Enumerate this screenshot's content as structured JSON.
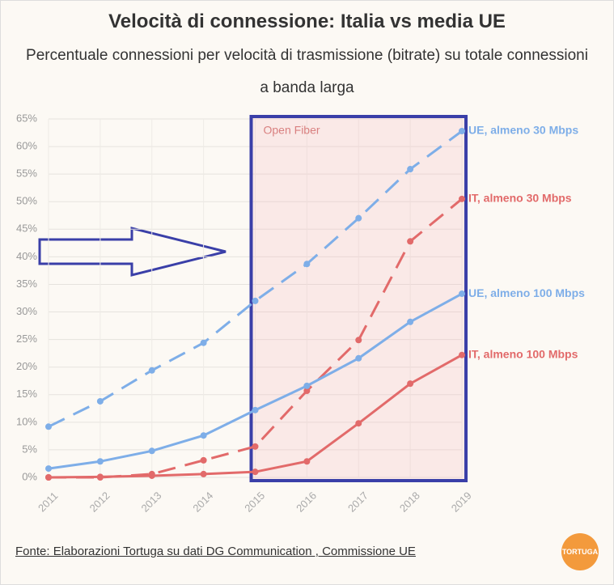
{
  "chart_data": {
    "type": "line",
    "title": "Velocità di connessione: Italia vs media UE",
    "subtitle": "Percentuale connessioni per velocità di trasmissione (bitrate) su totale connessioni a banda larga",
    "x": [
      2011,
      2012,
      2013,
      2014,
      2015,
      2016,
      2017,
      2018,
      2019
    ],
    "xlim": [
      2011,
      2019
    ],
    "ylim": [
      0,
      65
    ],
    "yticks": [
      {
        "value": 0,
        "label": "0%"
      },
      {
        "value": 5,
        "label": "5%"
      },
      {
        "value": 10,
        "label": "10%"
      },
      {
        "value": 15,
        "label": "15%"
      },
      {
        "value": 20,
        "label": "20%"
      },
      {
        "value": 25,
        "label": "25%"
      },
      {
        "value": 30,
        "label": "30%"
      },
      {
        "value": 35,
        "label": "35%"
      },
      {
        "value": 40,
        "label": "40%"
      },
      {
        "value": 45,
        "label": "45%"
      },
      {
        "value": 50,
        "label": "50%"
      },
      {
        "value": 55,
        "label": "55%"
      },
      {
        "value": 60,
        "label": "60%"
      },
      {
        "value": 65,
        "label": "65%"
      }
    ],
    "grid": true,
    "series": [
      {
        "name": "UE, almeno 30 Mbps",
        "color": "#7eaee8",
        "line_style": "dashed",
        "values": [
          9.2,
          13.8,
          19.4,
          24.4,
          32.0,
          38.7,
          47.0,
          55.9,
          62.8
        ]
      },
      {
        "name": "IT, almeno 30 Mbps",
        "color": "#e26a6a",
        "line_style": "dashed",
        "values": [
          0,
          0,
          0.6,
          3.1,
          5.6,
          15.7,
          24.9,
          42.8,
          50.5
        ]
      },
      {
        "name": "UE, almeno 100 Mbps",
        "color": "#7eaee8",
        "line_style": "solid",
        "values": [
          1.6,
          2.9,
          4.8,
          7.6,
          12.2,
          16.6,
          21.6,
          28.2,
          33.3
        ]
      },
      {
        "name": "IT, almeno 100 Mbps",
        "color": "#e26a6a",
        "line_style": "solid",
        "values": [
          0,
          0.1,
          0.3,
          0.6,
          1.0,
          2.9,
          9.8,
          17.0,
          22.2
        ]
      }
    ],
    "highlight": {
      "label": "Open Fiber",
      "x": [
        2015,
        2019
      ]
    },
    "source": "Fonte: Elaborazioni Tortuga su dati DG Communication , Commissione UE",
    "logo": "TORTUGA"
  }
}
